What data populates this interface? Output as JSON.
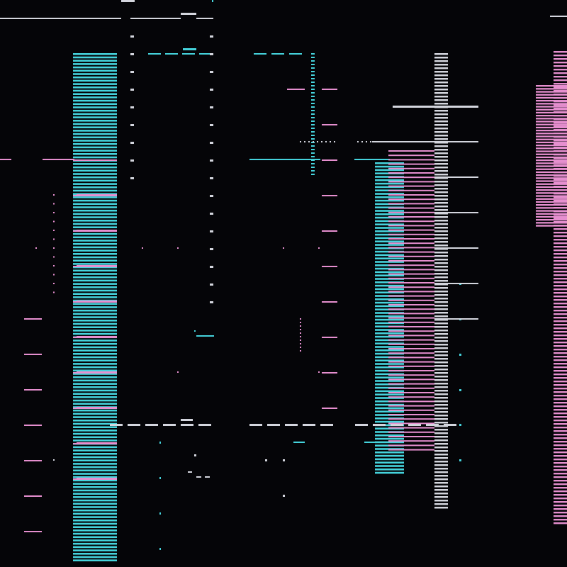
{
  "palette": {
    "background": "#050508",
    "cyan": "#45d3dc",
    "pink": "#e68fcf",
    "white": "#d4d6de"
  },
  "description_visible_text": []
}
